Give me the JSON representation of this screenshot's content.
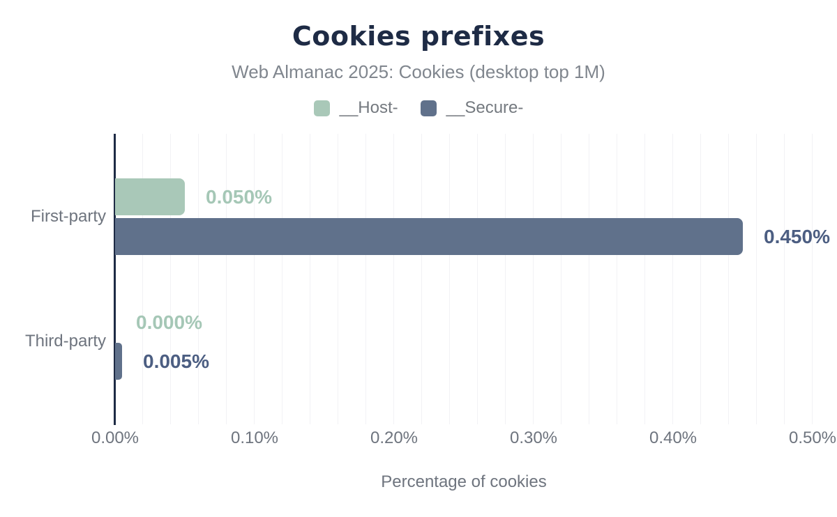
{
  "header": {
    "title": "Cookies prefixes",
    "subtitle": "Web Almanac 2025: Cookies (desktop top 1M)"
  },
  "legend": [
    {
      "label": "__Host-",
      "color": "#a9c8b8"
    },
    {
      "label": "__Secure-",
      "color": "#60718b"
    }
  ],
  "chart_data": {
    "type": "bar",
    "orientation": "horizontal",
    "title": "Cookies prefixes",
    "subtitle": "Web Almanac 2025: Cookies (desktop top 1M)",
    "categories": [
      "First-party",
      "Third-party"
    ],
    "series": [
      {
        "name": "__Host-",
        "color": "#a9c8b8",
        "label_color": "#a5c7b6",
        "values": [
          0.05,
          0.0
        ],
        "labels": [
          "0.050%",
          "0.000%"
        ]
      },
      {
        "name": "__Secure-",
        "color": "#60718b",
        "label_color": "#4c5e82",
        "values": [
          0.45,
          0.005
        ],
        "labels": [
          "0.450%",
          "0.005%"
        ]
      }
    ],
    "xlabel": "Percentage of cookies",
    "ylabel": "",
    "x_ticks": [
      "0.00%",
      "0.10%",
      "0.20%",
      "0.30%",
      "0.40%",
      "0.50%"
    ],
    "xlim": [
      0,
      0.5
    ],
    "grid": "vertical minor gridlines every 0.02%",
    "legend_position": "top"
  },
  "colors": {
    "background": "#ffffff",
    "title_text": "#1e2b45",
    "subtitle_text": "#80868e",
    "muted_text": "#6e747e",
    "axis_line": "#1e2b45",
    "gridline": "#f2f2f5"
  }
}
